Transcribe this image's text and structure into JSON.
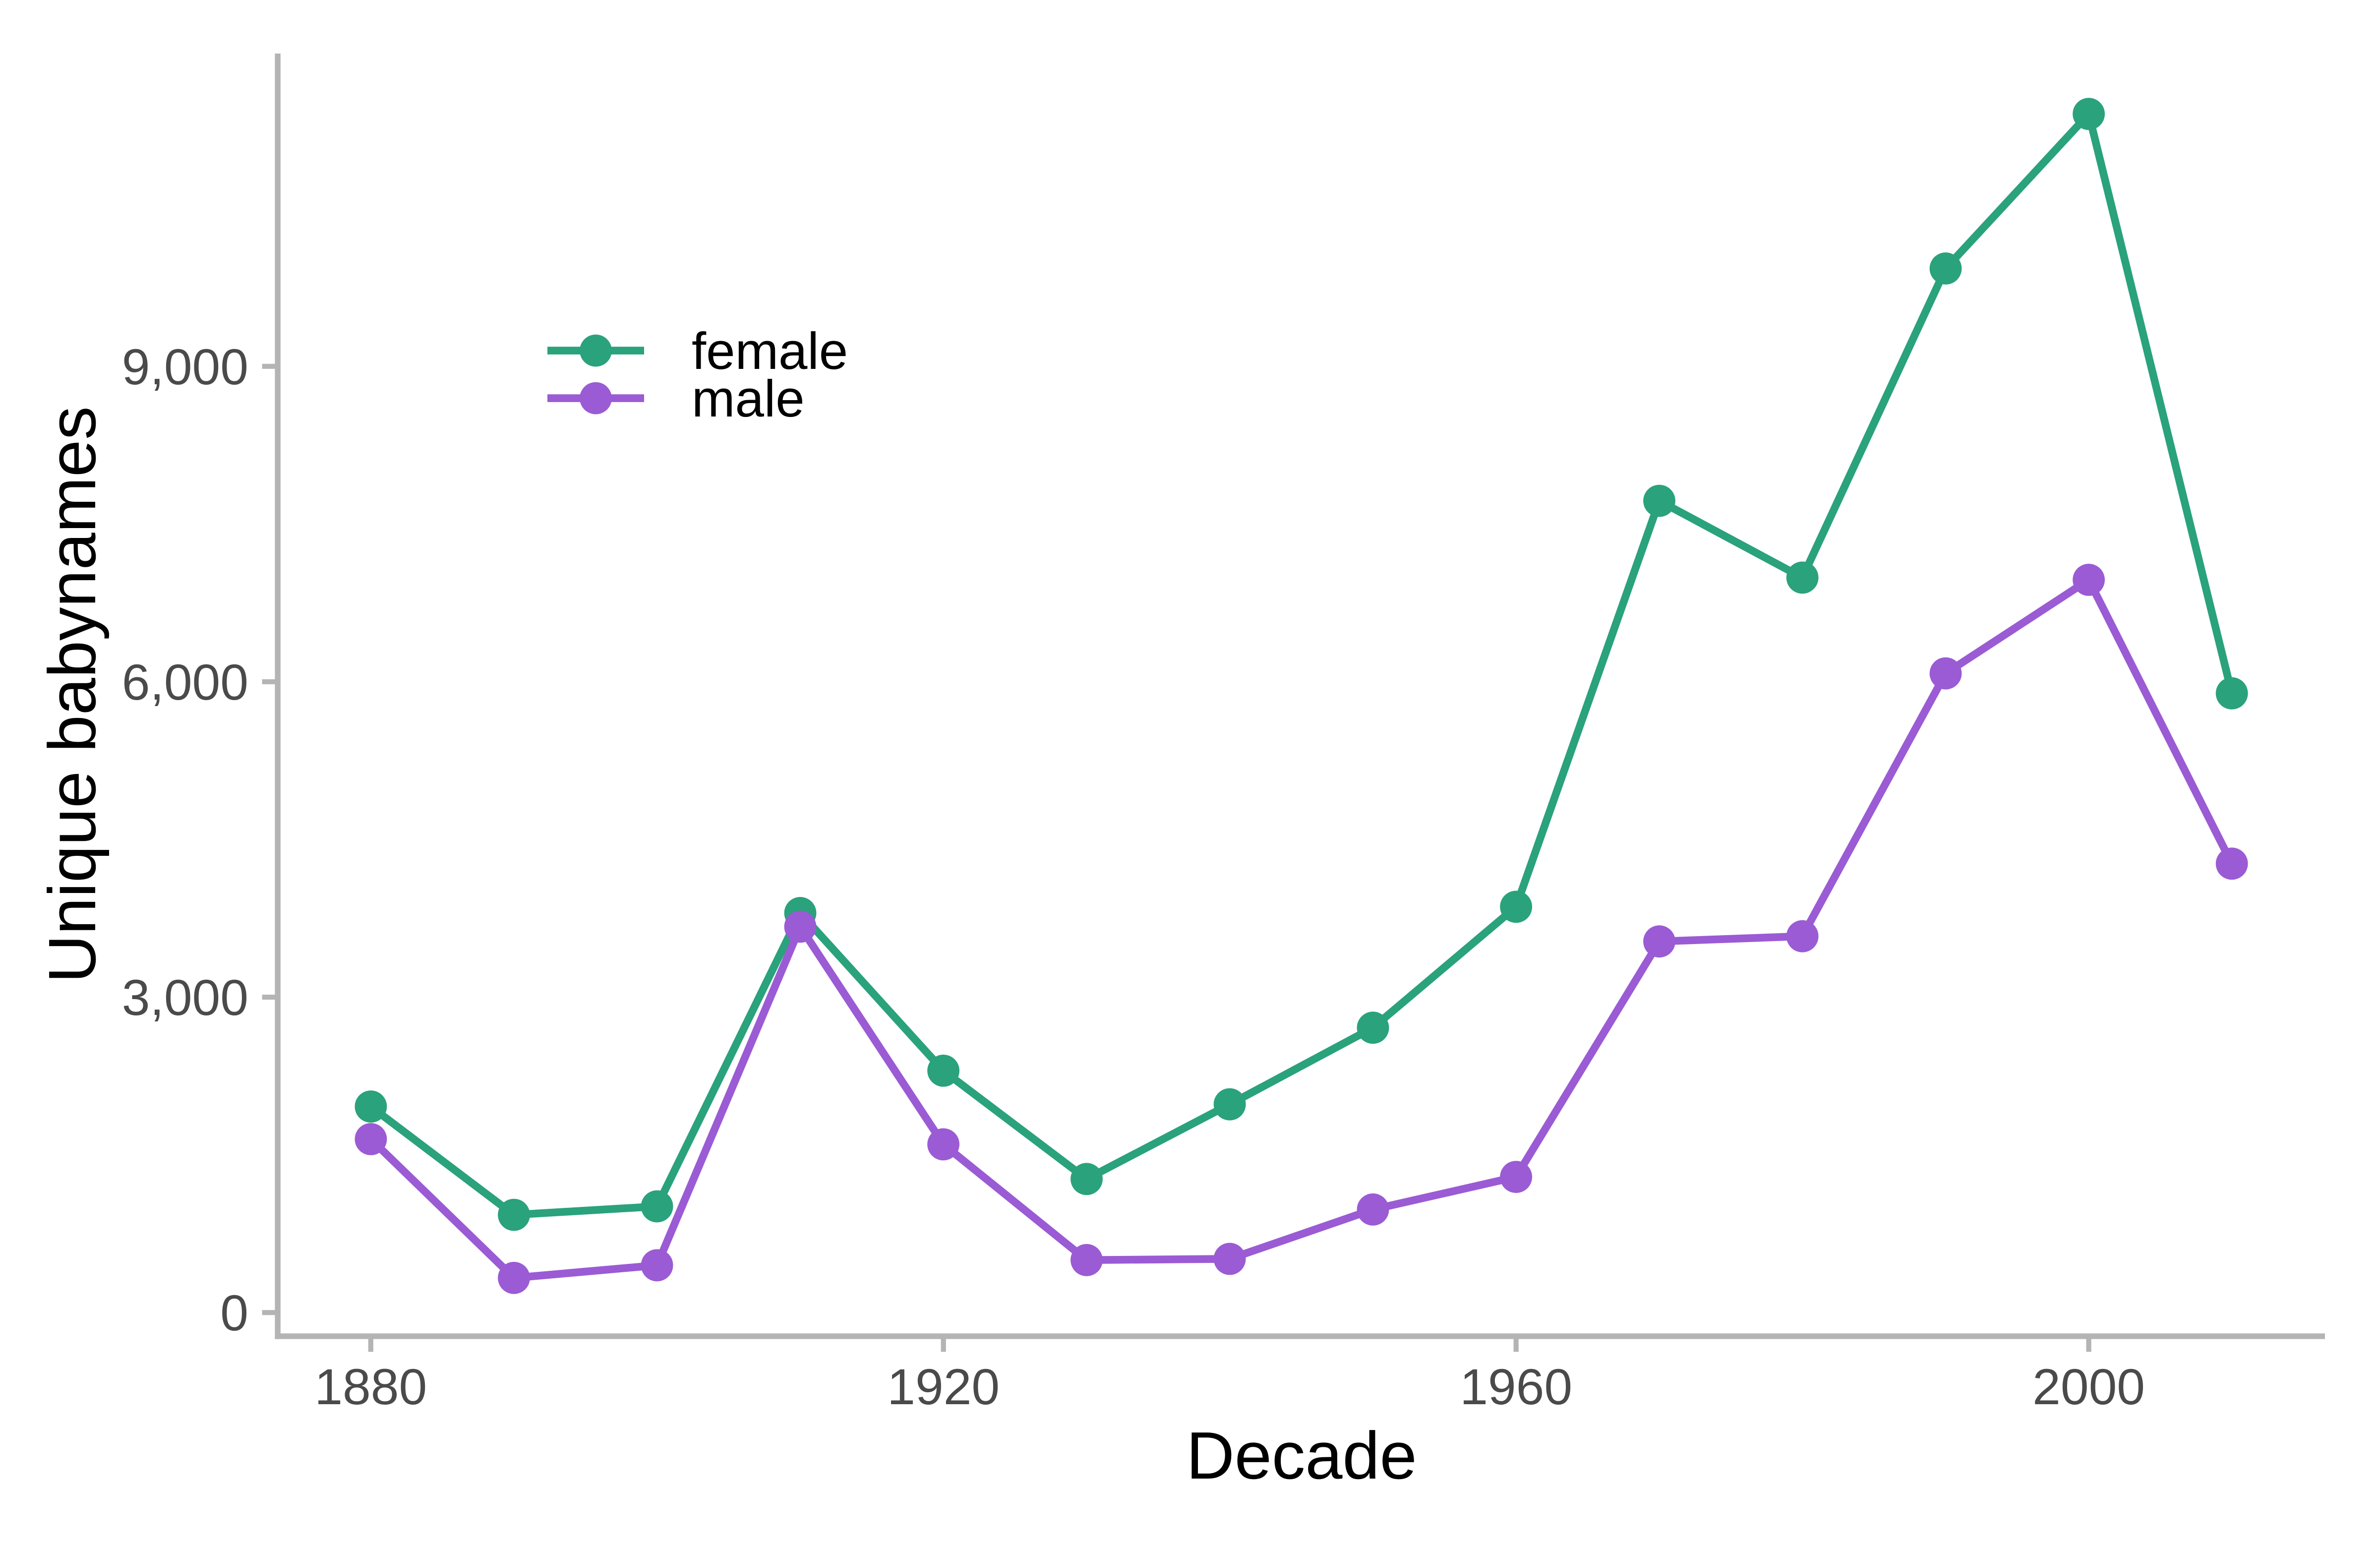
{
  "chart_data": {
    "type": "line",
    "title": "",
    "xlabel": "Decade",
    "ylabel": "Unique babynames",
    "x": [
      1880,
      1890,
      1900,
      1910,
      1920,
      1930,
      1940,
      1950,
      1960,
      1970,
      1980,
      1990,
      2000,
      2010
    ],
    "series": [
      {
        "name": "female",
        "color": "#2aa27c",
        "values": [
          1960,
          930,
          1010,
          3800,
          2300,
          1270,
          1980,
          2710,
          3860,
          7720,
          6990,
          9930,
          11400,
          5890
        ]
      },
      {
        "name": "male",
        "color": "#9a5bd4",
        "values": [
          1650,
          330,
          450,
          3670,
          1600,
          500,
          510,
          980,
          1290,
          3530,
          3580,
          6080,
          6970,
          4270
        ]
      }
    ],
    "x_tick_values": [
      1880,
      1920,
      1960,
      2000
    ],
    "x_tick_labels": [
      "1880",
      "1920",
      "1960",
      "2000"
    ],
    "y_tick_values": [
      0,
      3000,
      6000,
      9000
    ],
    "y_tick_labels": [
      "0",
      "3,000",
      "6,000",
      "9,000"
    ],
    "xlim": [
      1873.5,
      2016.5
    ],
    "ylim": [
      -225,
      11975
    ],
    "grid": false,
    "legend_position": "inside-top-left",
    "marker": "circle",
    "background_color": "#ffffff",
    "axis_line_color": "#b4b4b4",
    "tick_mark_color": "#b4b4b4",
    "tick_label_color": "#4a4a4a",
    "axis_title_color": "#000000"
  }
}
